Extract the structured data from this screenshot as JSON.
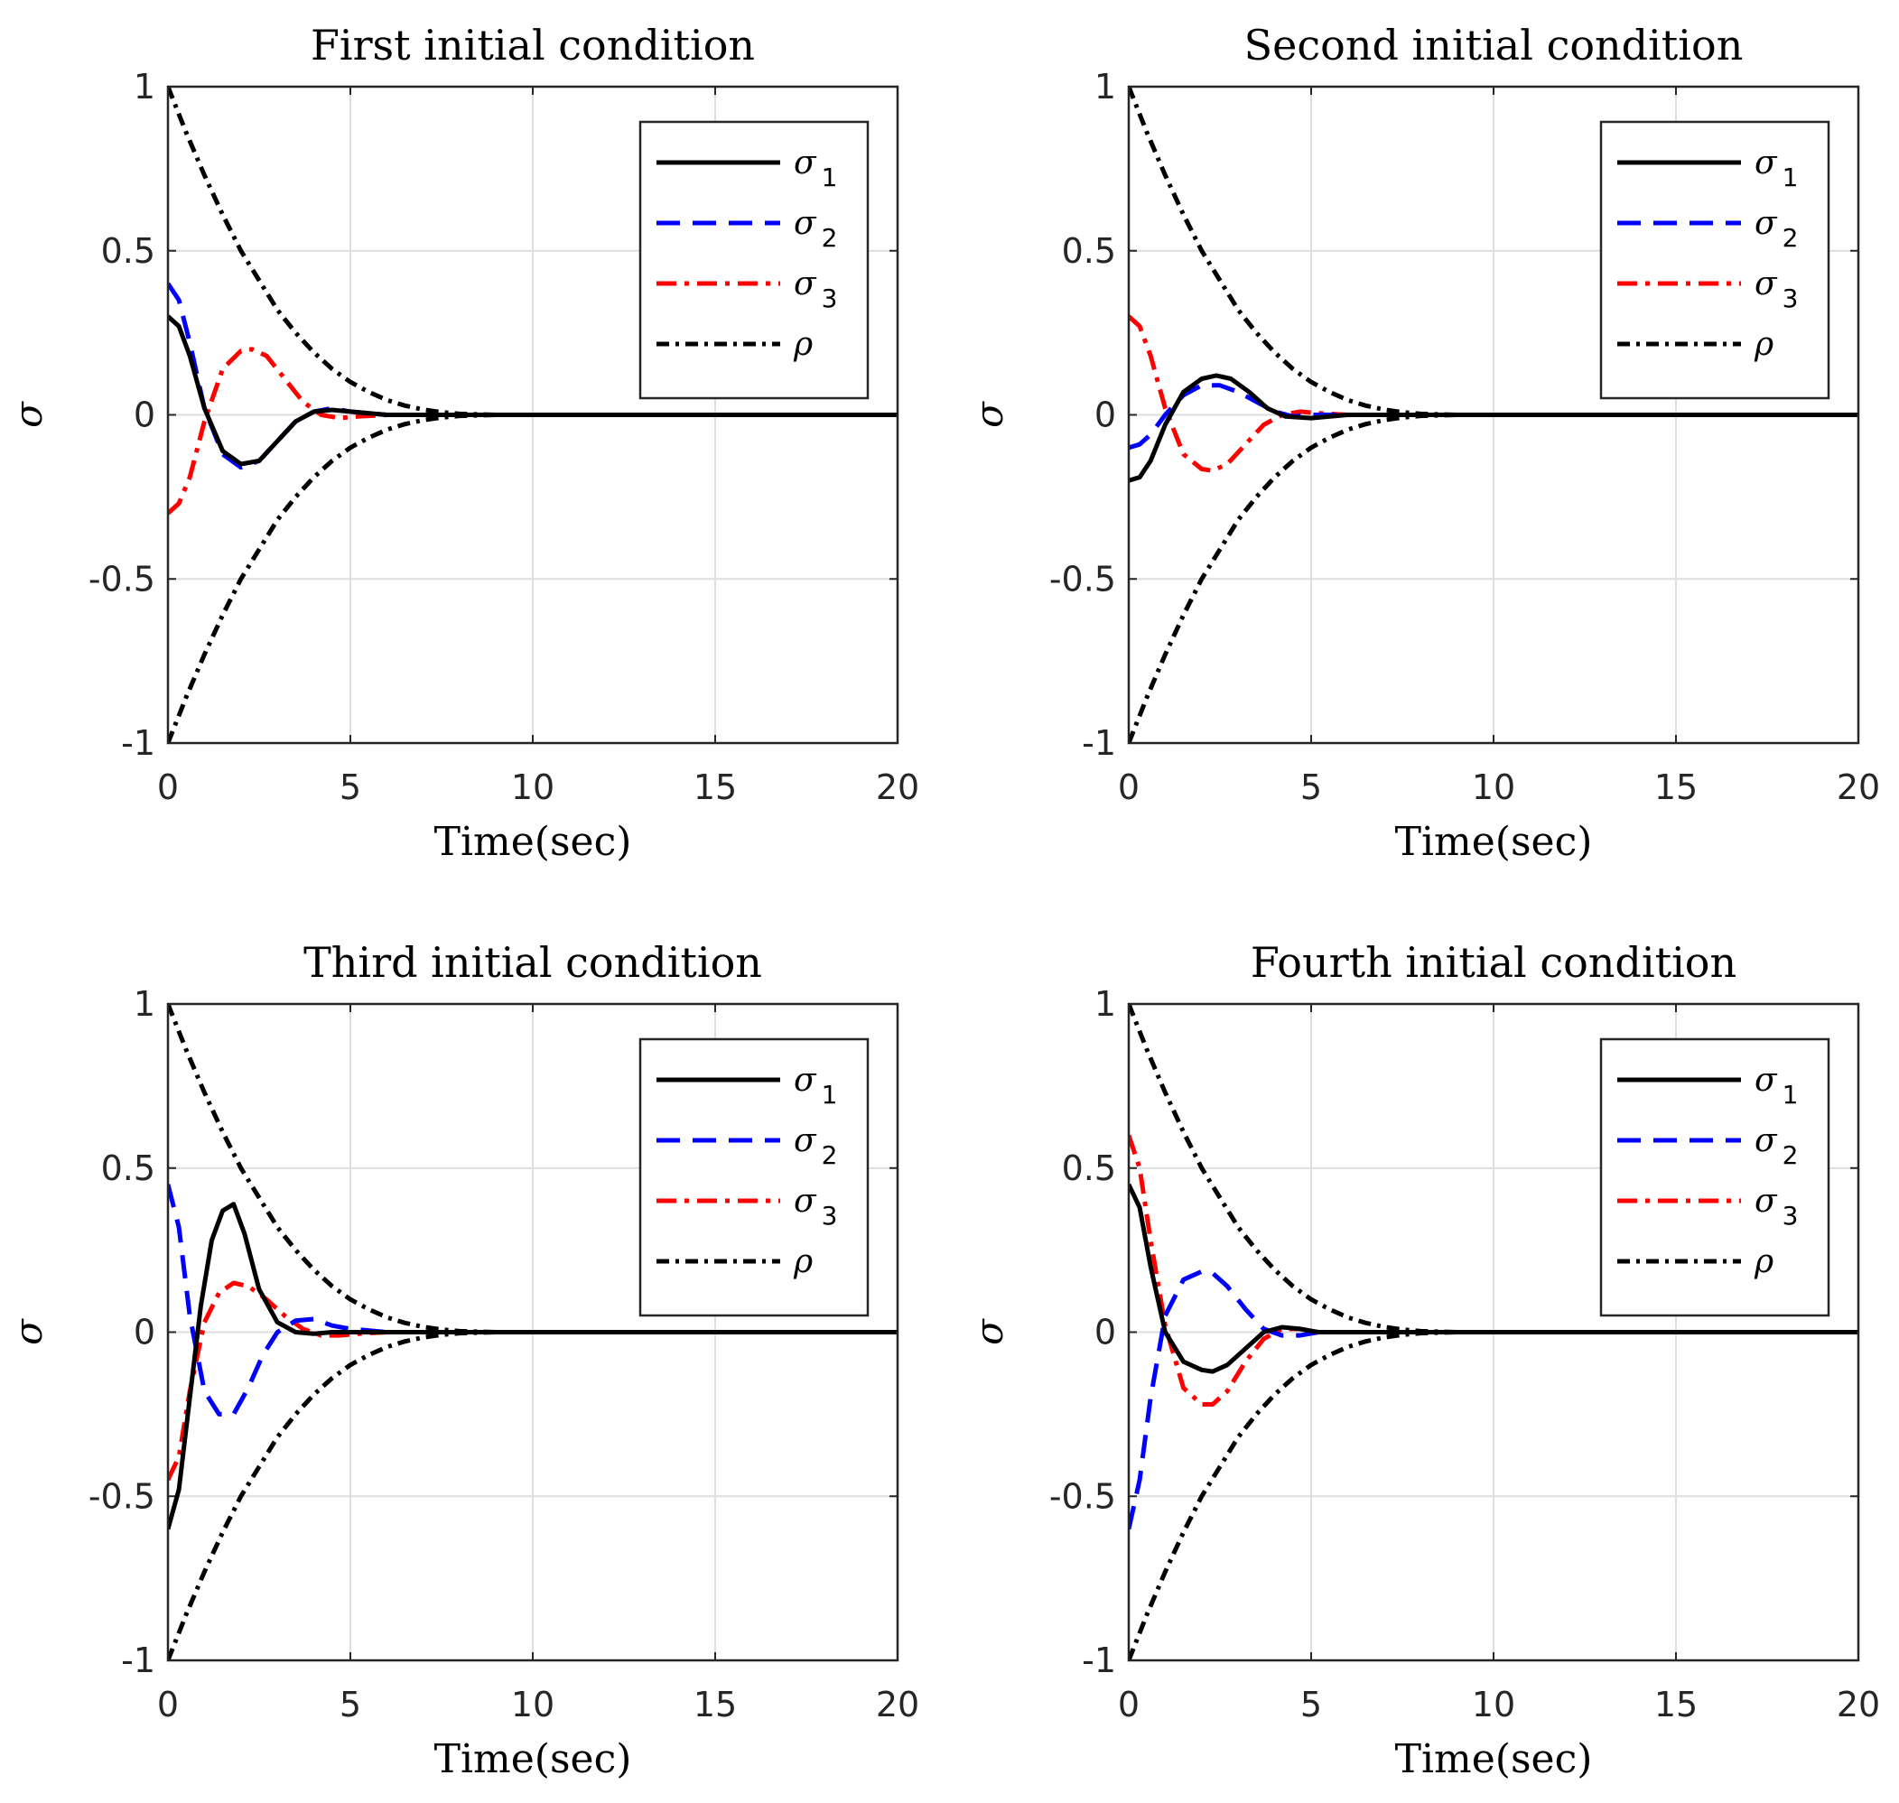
{
  "colors": {
    "sigma1": "#000000",
    "sigma2": "#0000ff",
    "sigma3": "#ff0000",
    "rho": "#000000",
    "grid": "#dedede",
    "axis": "#262626"
  },
  "chart_data": [
    {
      "type": "line",
      "title": "First initial condition",
      "xlabel": "Time(sec)",
      "ylabel": "σ",
      "xlim": [
        0,
        20
      ],
      "ylim": [
        -1,
        1
      ],
      "xticks": [
        "0",
        "5",
        "10",
        "15",
        "20"
      ],
      "yticks": [
        "-1",
        "-0.5",
        "0",
        "0.5",
        "1"
      ],
      "grid": true,
      "legend_position": "top-right",
      "series": [
        {
          "name": "σ1",
          "label": "σ",
          "sub": "1",
          "style": "solid",
          "x": [
            0,
            0.3,
            0.6,
            1.0,
            1.5,
            2.0,
            2.5,
            3.0,
            3.5,
            4.0,
            4.5,
            5.0,
            6.0,
            8.0,
            20.0
          ],
          "y": [
            0.3,
            0.27,
            0.18,
            0.02,
            -0.11,
            -0.15,
            -0.14,
            -0.08,
            -0.02,
            0.01,
            0.015,
            0.01,
            0.0,
            0.0,
            0.0
          ]
        },
        {
          "name": "σ2",
          "label": "σ",
          "sub": "2",
          "style": "dashed",
          "x": [
            0,
            0.3,
            0.6,
            1.0,
            1.5,
            2.0,
            2.5,
            3.0,
            3.5,
            4.0,
            4.5,
            5.0,
            6.0,
            8.0,
            20.0
          ],
          "y": [
            0.4,
            0.35,
            0.22,
            0.02,
            -0.12,
            -0.16,
            -0.14,
            -0.08,
            -0.02,
            0.01,
            0.02,
            0.01,
            0.0,
            0.0,
            0.0
          ]
        },
        {
          "name": "σ3",
          "label": "σ",
          "sub": "3",
          "style": "dashdot",
          "x": [
            0,
            0.3,
            0.6,
            1.0,
            1.5,
            2.0,
            2.3,
            2.7,
            3.2,
            3.7,
            4.2,
            4.7,
            5.2,
            6.0,
            8.0,
            20.0
          ],
          "y": [
            -0.3,
            -0.27,
            -0.19,
            -0.02,
            0.14,
            0.195,
            0.2,
            0.18,
            0.11,
            0.04,
            0.0,
            -0.01,
            -0.005,
            0.0,
            0.0,
            0.0
          ]
        },
        {
          "name": "ρ",
          "label": "ρ",
          "sub": "",
          "style": "dashdotdense",
          "x": [
            0,
            0.5,
            1.0,
            1.5,
            2.0,
            2.5,
            3.0,
            3.5,
            4.0,
            4.5,
            5.0,
            5.5,
            6.0,
            6.5,
            7.0,
            7.5,
            8.0,
            9.0,
            10.0,
            20.0
          ],
          "y": [
            1.0,
            0.86,
            0.73,
            0.61,
            0.5,
            0.41,
            0.32,
            0.25,
            0.19,
            0.14,
            0.1,
            0.07,
            0.045,
            0.028,
            0.016,
            0.008,
            0.003,
            0.0,
            0.0,
            0.0
          ],
          "mirror": true
        }
      ]
    },
    {
      "type": "line",
      "title": "Second initial condition",
      "xlabel": "Time(sec)",
      "ylabel": "σ",
      "xlim": [
        0,
        20
      ],
      "ylim": [
        -1,
        1
      ],
      "xticks": [
        "0",
        "5",
        "10",
        "15",
        "20"
      ],
      "yticks": [
        "-1",
        "-0.5",
        "0",
        "0.5",
        "1"
      ],
      "grid": true,
      "legend_position": "top-right",
      "series": [
        {
          "name": "σ1",
          "label": "σ",
          "sub": "1",
          "style": "solid",
          "x": [
            0,
            0.3,
            0.6,
            1.0,
            1.5,
            2.0,
            2.4,
            2.8,
            3.3,
            3.8,
            4.3,
            5.0,
            6.0,
            8.0,
            20.0
          ],
          "y": [
            -0.2,
            -0.19,
            -0.14,
            -0.03,
            0.07,
            0.11,
            0.12,
            0.11,
            0.07,
            0.02,
            -0.005,
            -0.01,
            0.0,
            0.0,
            0.0
          ]
        },
        {
          "name": "σ2",
          "label": "σ",
          "sub": "2",
          "style": "dashed",
          "x": [
            0,
            0.3,
            0.6,
            1.0,
            1.5,
            2.0,
            2.5,
            3.0,
            3.5,
            4.0,
            4.5,
            5.0,
            6.0,
            8.0,
            20.0
          ],
          "y": [
            -0.1,
            -0.09,
            -0.06,
            0.0,
            0.06,
            0.09,
            0.09,
            0.07,
            0.04,
            0.01,
            -0.005,
            0.0,
            0.0,
            0.0,
            0.0
          ]
        },
        {
          "name": "σ3",
          "label": "σ",
          "sub": "3",
          "style": "dashdot",
          "x": [
            0,
            0.3,
            0.6,
            1.0,
            1.5,
            2.0,
            2.3,
            2.7,
            3.2,
            3.7,
            4.2,
            4.7,
            5.2,
            6.0,
            8.0,
            20.0
          ],
          "y": [
            0.3,
            0.27,
            0.18,
            0.02,
            -0.12,
            -0.165,
            -0.17,
            -0.15,
            -0.09,
            -0.03,
            0.0,
            0.01,
            0.005,
            0.0,
            0.0,
            0.0
          ]
        },
        {
          "name": "ρ",
          "label": "ρ",
          "sub": "",
          "style": "dashdotdense",
          "x": [
            0,
            0.5,
            1.0,
            1.5,
            2.0,
            2.5,
            3.0,
            3.5,
            4.0,
            4.5,
            5.0,
            5.5,
            6.0,
            6.5,
            7.0,
            7.5,
            8.0,
            9.0,
            10.0,
            20.0
          ],
          "y": [
            1.0,
            0.86,
            0.73,
            0.61,
            0.5,
            0.41,
            0.32,
            0.25,
            0.19,
            0.14,
            0.1,
            0.07,
            0.045,
            0.028,
            0.016,
            0.008,
            0.003,
            0.0,
            0.0,
            0.0
          ],
          "mirror": true
        }
      ]
    },
    {
      "type": "line",
      "title": "Third initial condition",
      "xlabel": "Time(sec)",
      "ylabel": "σ",
      "xlim": [
        0,
        20
      ],
      "ylim": [
        -1,
        1
      ],
      "xticks": [
        "0",
        "5",
        "10",
        "15",
        "20"
      ],
      "yticks": [
        "-1",
        "-0.5",
        "0",
        "0.5",
        "1"
      ],
      "grid": true,
      "legend_position": "top-right",
      "series": [
        {
          "name": "σ1",
          "label": "σ",
          "sub": "1",
          "style": "solid",
          "x": [
            0,
            0.3,
            0.6,
            0.9,
            1.2,
            1.5,
            1.8,
            2.1,
            2.5,
            3.0,
            3.5,
            4.0,
            4.5,
            5.0,
            6.0,
            8.0,
            20.0
          ],
          "y": [
            -0.6,
            -0.48,
            -0.2,
            0.08,
            0.28,
            0.37,
            0.39,
            0.3,
            0.13,
            0.03,
            0.0,
            -0.005,
            0.0,
            0.0,
            0.0,
            0.0,
            0.0
          ]
        },
        {
          "name": "σ2",
          "label": "σ",
          "sub": "2",
          "style": "dashed",
          "x": [
            0,
            0.3,
            0.6,
            1.0,
            1.4,
            1.8,
            2.2,
            2.6,
            3.0,
            3.5,
            4.0,
            4.5,
            5.0,
            6.0,
            8.0,
            20.0
          ],
          "y": [
            0.45,
            0.32,
            0.05,
            -0.18,
            -0.25,
            -0.25,
            -0.17,
            -0.07,
            0.0,
            0.035,
            0.04,
            0.02,
            0.01,
            0.0,
            0.0,
            0.0
          ]
        },
        {
          "name": "σ3",
          "label": "σ",
          "sub": "3",
          "style": "dashdot",
          "x": [
            0,
            0.3,
            0.6,
            1.0,
            1.4,
            1.8,
            2.2,
            2.7,
            3.2,
            3.7,
            4.2,
            4.7,
            5.2,
            6.0,
            8.0,
            20.0
          ],
          "y": [
            -0.45,
            -0.38,
            -0.18,
            0.03,
            0.12,
            0.15,
            0.14,
            0.1,
            0.05,
            0.01,
            -0.01,
            -0.01,
            -0.005,
            0.0,
            0.0,
            0.0
          ]
        },
        {
          "name": "ρ",
          "label": "ρ",
          "sub": "",
          "style": "dashdotdense",
          "x": [
            0,
            0.5,
            1.0,
            1.5,
            2.0,
            2.5,
            3.0,
            3.5,
            4.0,
            4.5,
            5.0,
            5.5,
            6.0,
            6.5,
            7.0,
            7.5,
            8.0,
            9.0,
            10.0,
            20.0
          ],
          "y": [
            1.0,
            0.86,
            0.73,
            0.61,
            0.5,
            0.41,
            0.32,
            0.25,
            0.19,
            0.14,
            0.1,
            0.07,
            0.045,
            0.028,
            0.016,
            0.008,
            0.003,
            0.0,
            0.0,
            0.0
          ],
          "mirror": true
        }
      ]
    },
    {
      "type": "line",
      "title": "Fourth initial condition",
      "xlabel": "Time(sec)",
      "ylabel": "σ",
      "xlim": [
        0,
        20
      ],
      "ylim": [
        -1,
        1
      ],
      "xticks": [
        "0",
        "5",
        "10",
        "15",
        "20"
      ],
      "yticks": [
        "-1",
        "-0.5",
        "0",
        "0.5",
        "1"
      ],
      "grid": true,
      "legend_position": "top-right",
      "series": [
        {
          "name": "σ1",
          "label": "σ",
          "sub": "1",
          "style": "solid",
          "x": [
            0,
            0.3,
            0.6,
            1.0,
            1.5,
            2.0,
            2.3,
            2.7,
            3.2,
            3.7,
            4.2,
            4.7,
            5.2,
            6.0,
            8.0,
            20.0
          ],
          "y": [
            0.45,
            0.38,
            0.2,
            0.0,
            -0.09,
            -0.115,
            -0.12,
            -0.1,
            -0.05,
            0.0,
            0.015,
            0.01,
            0.0,
            0.0,
            0.0,
            0.0
          ]
        },
        {
          "name": "σ2",
          "label": "σ",
          "sub": "2",
          "style": "dashed",
          "x": [
            0,
            0.3,
            0.6,
            1.0,
            1.5,
            2.0,
            2.3,
            2.7,
            3.2,
            3.7,
            4.2,
            4.7,
            5.2,
            6.0,
            8.0,
            20.0
          ],
          "y": [
            -0.6,
            -0.45,
            -0.2,
            0.05,
            0.16,
            0.185,
            0.18,
            0.14,
            0.07,
            0.01,
            -0.01,
            -0.01,
            0.0,
            0.0,
            0.0,
            0.0
          ]
        },
        {
          "name": "σ3",
          "label": "σ",
          "sub": "3",
          "style": "dashdot",
          "x": [
            0,
            0.3,
            0.6,
            1.0,
            1.5,
            2.0,
            2.3,
            2.7,
            3.2,
            3.7,
            4.2,
            4.7,
            5.2,
            6.0,
            8.0,
            20.0
          ],
          "y": [
            0.6,
            0.5,
            0.28,
            0.02,
            -0.17,
            -0.22,
            -0.22,
            -0.18,
            -0.09,
            -0.02,
            0.01,
            0.01,
            0.0,
            0.0,
            0.0,
            0.0
          ]
        },
        {
          "name": "ρ",
          "label": "ρ",
          "sub": "",
          "style": "dashdotdense",
          "x": [
            0,
            0.5,
            1.0,
            1.5,
            2.0,
            2.5,
            3.0,
            3.5,
            4.0,
            4.5,
            5.0,
            5.5,
            6.0,
            6.5,
            7.0,
            7.5,
            8.0,
            9.0,
            10.0,
            20.0
          ],
          "y": [
            1.0,
            0.86,
            0.73,
            0.61,
            0.5,
            0.41,
            0.32,
            0.25,
            0.19,
            0.14,
            0.1,
            0.07,
            0.045,
            0.028,
            0.016,
            0.008,
            0.003,
            0.0,
            0.0,
            0.0
          ],
          "mirror": true
        }
      ]
    }
  ]
}
